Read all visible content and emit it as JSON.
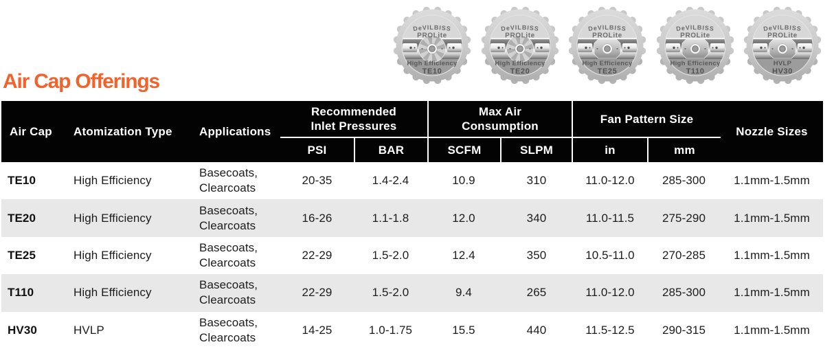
{
  "title": "Air Cap Offerings",
  "accent_color": "#F2622B",
  "header_bar_color": "#030303",
  "stripe_color": "#e8e8e8",
  "caps": {
    "items": [
      {
        "brand": "DeVILBISS",
        "series": "PROLite",
        "type": "High Efficiency",
        "code": "TE10"
      },
      {
        "brand": "DeVILBISS",
        "series": "PROLite",
        "type": "High Efficiency",
        "code": "TE20"
      },
      {
        "brand": "DeVILBISS",
        "series": "PROLite",
        "type": "High Efficiency",
        "code": "TE25"
      },
      {
        "brand": "DeVILBISS",
        "series": "PROLite",
        "type": "High Efficiency",
        "code": "T110"
      },
      {
        "brand": "DeVILBISS",
        "series": "PROLite",
        "type": "HVLP",
        "code": "HV30"
      }
    ]
  },
  "table": {
    "header": {
      "air_cap": "Air Cap",
      "atomization_type": "Atomization Type",
      "applications": "Applications",
      "recommended_inlet_pressures": "Recommended Inlet Pressures",
      "psi": "PSI",
      "bar": "BAR",
      "max_air_consumption": "Max Air Consumption",
      "scfm": "SCFM",
      "slpm": "SLPM",
      "fan_pattern_size": "Fan Pattern Size",
      "in": "in",
      "mm": "mm",
      "nozzle_sizes": "Nozzle Sizes"
    },
    "rows": [
      {
        "air_cap": "TE10",
        "atomization_type": "High Efficiency",
        "applications": "Basecoats, Clearcoats",
        "psi": "20-35",
        "bar": "1.4-2.4",
        "scfm": "10.9",
        "slpm": "310",
        "fan_in": "11.0-12.0",
        "fan_mm": "285-300",
        "nozzle_sizes": "1.1mm-1.5mm"
      },
      {
        "air_cap": "TE20",
        "atomization_type": "High Efficiency",
        "applications": "Basecoats, Clearcoats",
        "psi": "16-26",
        "bar": "1.1-1.8",
        "scfm": "12.0",
        "slpm": "340",
        "fan_in": "11.0-11.5",
        "fan_mm": "275-290",
        "nozzle_sizes": "1.1mm-1.5mm"
      },
      {
        "air_cap": "TE25",
        "atomization_type": "High Efficiency",
        "applications": "Basecoats, Clearcoats",
        "psi": "22-29",
        "bar": "1.5-2.0",
        "scfm": "12.4",
        "slpm": "350",
        "fan_in": "10.5-11.0",
        "fan_mm": "270-285",
        "nozzle_sizes": "1.1mm-1.5mm"
      },
      {
        "air_cap": "T110",
        "atomization_type": "High Efficiency",
        "applications": "Basecoats, Clearcoats",
        "psi": "22-29",
        "bar": "1.5-2.0",
        "scfm": "9.4",
        "slpm": "265",
        "fan_in": "11.0-12.0",
        "fan_mm": "285-300",
        "nozzle_sizes": "1.1mm-1.5mm"
      },
      {
        "air_cap": "HV30",
        "atomization_type": "HVLP",
        "applications": "Basecoats, Clearcoats",
        "psi": "14-25",
        "bar": "1.0-1.75",
        "scfm": "15.5",
        "slpm": "440",
        "fan_in": "11.5-12.5",
        "fan_mm": "290-315",
        "nozzle_sizes": "1.1mm-1.5mm"
      }
    ]
  }
}
